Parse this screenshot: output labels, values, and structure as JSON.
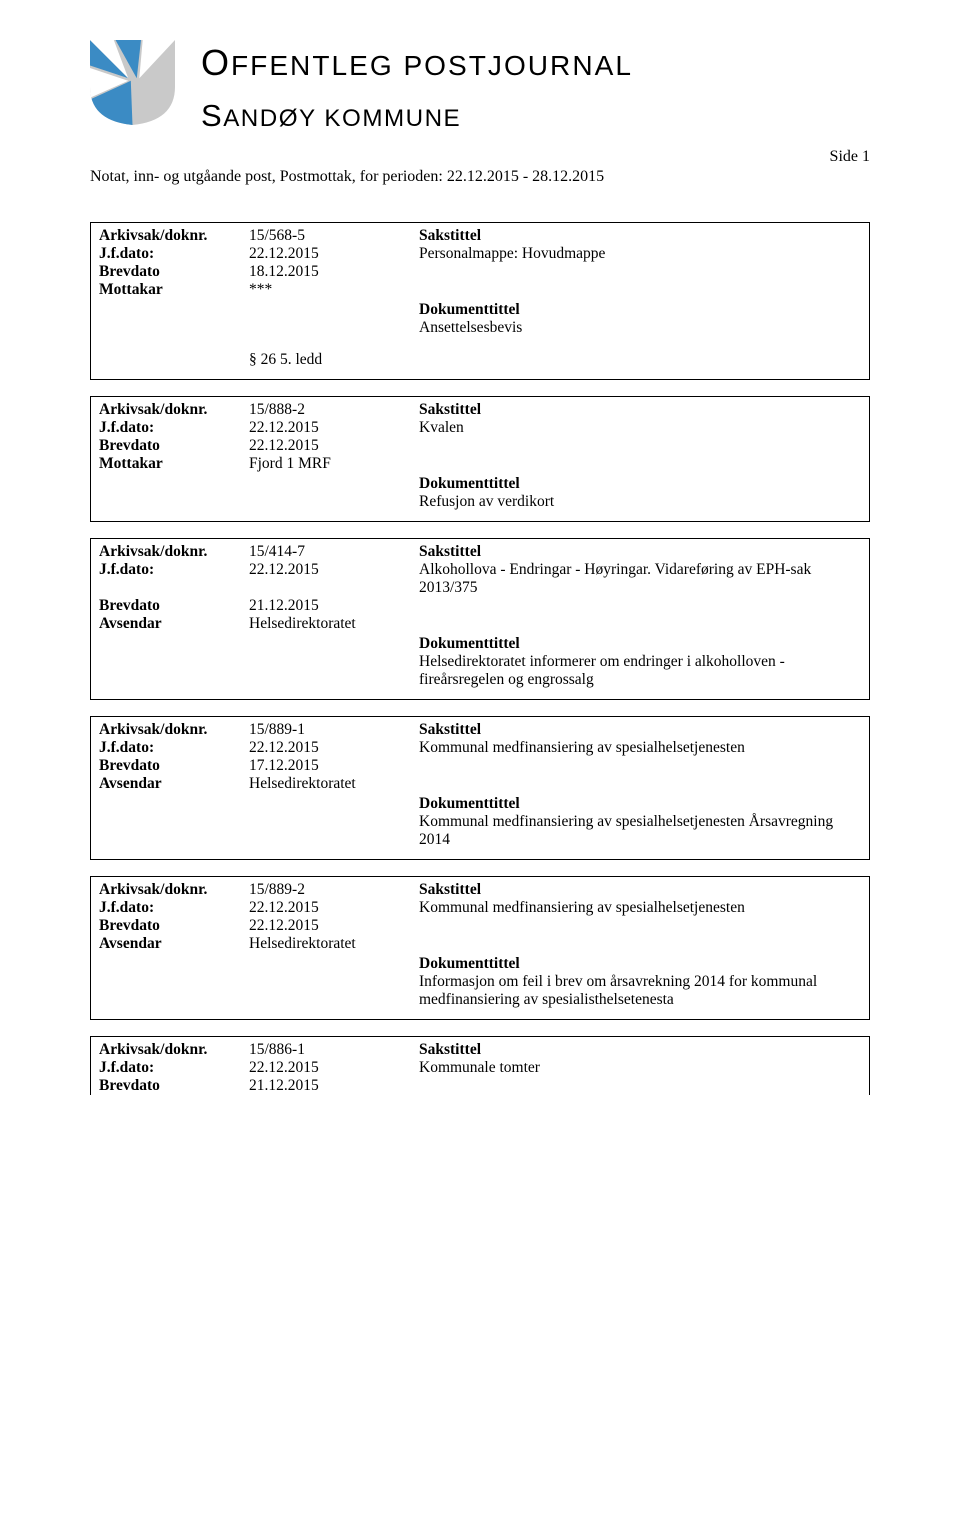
{
  "header": {
    "title_main_first": "O",
    "title_main_rest": "FFENTLEG POSTJOURNAL",
    "title_sub_first": "S",
    "title_sub_rest": "ANDØY KOMMUNE",
    "logo_colors": {
      "blue": "#3b8bc4",
      "grey": "#c9c9c9",
      "white": "#ffffff"
    }
  },
  "side": {
    "label": "Side",
    "num": "1"
  },
  "notat_line": "Notat, inn- og utgåande post, Postmottak, for perioden: 22.12.2015 - 28.12.2015",
  "labels": {
    "arkiv": "Arkivsak/doknr.",
    "jfdato": "J.f.dato:",
    "brevdato": "Brevdato",
    "mottakar": "Mottakar",
    "avsendar": "Avsendar",
    "sakstittel": "Sakstittel",
    "dokumenttittel": "Dokumenttittel"
  },
  "records": [
    {
      "arkiv": "15/568-5",
      "jfdato": "22.12.2015",
      "brevdato": "18.12.2015",
      "party_label_key": "mottakar",
      "party_value": "***",
      "sakstittel": "Personalmappe: Hovudmappe",
      "dok_text": "Ansettelsesbevis",
      "unntak": "§ 26 5. ledd"
    },
    {
      "arkiv": "15/888-2",
      "jfdato": "22.12.2015",
      "brevdato": "22.12.2015",
      "party_label_key": "mottakar",
      "party_value": "Fjord 1 MRF",
      "sakstittel": "Kvalen",
      "dok_text": "Refusjon av verdikort"
    },
    {
      "arkiv": "15/414-7",
      "jfdato": "22.12.2015",
      "brevdato": "21.12.2015",
      "party_label_key": "avsendar",
      "party_value": "Helsedirektoratet",
      "sakstittel": "Alkohollova - Endringar - Høyringar. Vidareføring av EPH-sak 2013/375",
      "dok_text": "Helsedirektoratet informerer om endringer i alkoholloven - fireårsregelen og engrossalg"
    },
    {
      "arkiv": "15/889-1",
      "jfdato": "22.12.2015",
      "brevdato": "17.12.2015",
      "party_label_key": "avsendar",
      "party_value": "Helsedirektoratet",
      "sakstittel": "Kommunal medfinansiering av spesialhelsetjenesten",
      "dok_text": "Kommunal medfinansiering av spesialhelsetjenesten Årsavregning 2014"
    },
    {
      "arkiv": "15/889-2",
      "jfdato": "22.12.2015",
      "brevdato": "22.12.2015",
      "party_label_key": "avsendar",
      "party_value": "Helsedirektoratet",
      "sakstittel": "Kommunal medfinansiering av spesialhelsetjenesten",
      "dok_text": "Informasjon om feil i brev om årsavrekning 2014 for kommunal medfinansiering av spesialisthelsetenesta"
    },
    {
      "arkiv": "15/886-1",
      "jfdato": "22.12.2015",
      "brevdato": "21.12.2015",
      "sakstittel": "Kommunale tomter",
      "continued": true
    }
  ]
}
